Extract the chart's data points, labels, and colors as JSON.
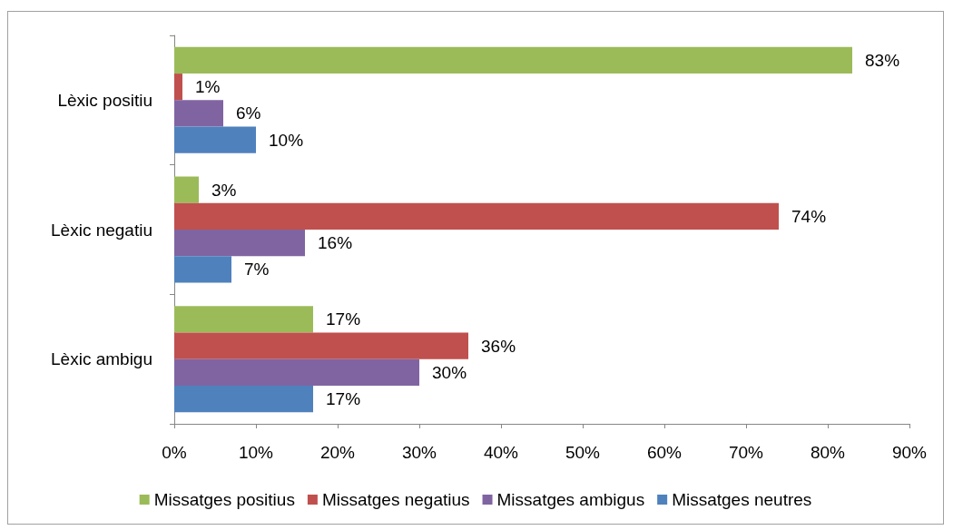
{
  "chart_data": {
    "type": "bar",
    "orientation": "horizontal",
    "categories": [
      "Lèxic positiu",
      "Lèxic negatiu",
      "Lèxic ambigu"
    ],
    "series": [
      {
        "name": "Missatges positius",
        "color": "#9bbb59",
        "values": [
          83,
          3,
          17
        ],
        "value_labels": [
          "83%",
          "3%",
          "17%"
        ]
      },
      {
        "name": "Missatges negatius",
        "color": "#c0504d",
        "values": [
          1,
          74,
          36
        ],
        "value_labels": [
          "1%",
          "74%",
          "36%"
        ]
      },
      {
        "name": "Missatges ambigus",
        "color": "#8064a2",
        "values": [
          6,
          16,
          30
        ],
        "value_labels": [
          "6%",
          "16%",
          "30%"
        ]
      },
      {
        "name": "Missatges neutres",
        "color": "#4f81bd",
        "values": [
          10,
          7,
          17
        ],
        "value_labels": [
          "10%",
          "7%",
          "17%"
        ]
      }
    ],
    "xlim": [
      0,
      90
    ],
    "xticks": [
      {
        "value": 0,
        "label": "0%"
      },
      {
        "value": 10,
        "label": "10%"
      },
      {
        "value": 20,
        "label": "20%"
      },
      {
        "value": 30,
        "label": "30%"
      },
      {
        "value": 40,
        "label": "40%"
      },
      {
        "value": 50,
        "label": "50%"
      },
      {
        "value": 60,
        "label": "60%"
      },
      {
        "value": 70,
        "label": "70%"
      },
      {
        "value": 80,
        "label": "80%"
      },
      {
        "value": 90,
        "label": "90%"
      }
    ],
    "grid": false,
    "legend": "bottom"
  }
}
